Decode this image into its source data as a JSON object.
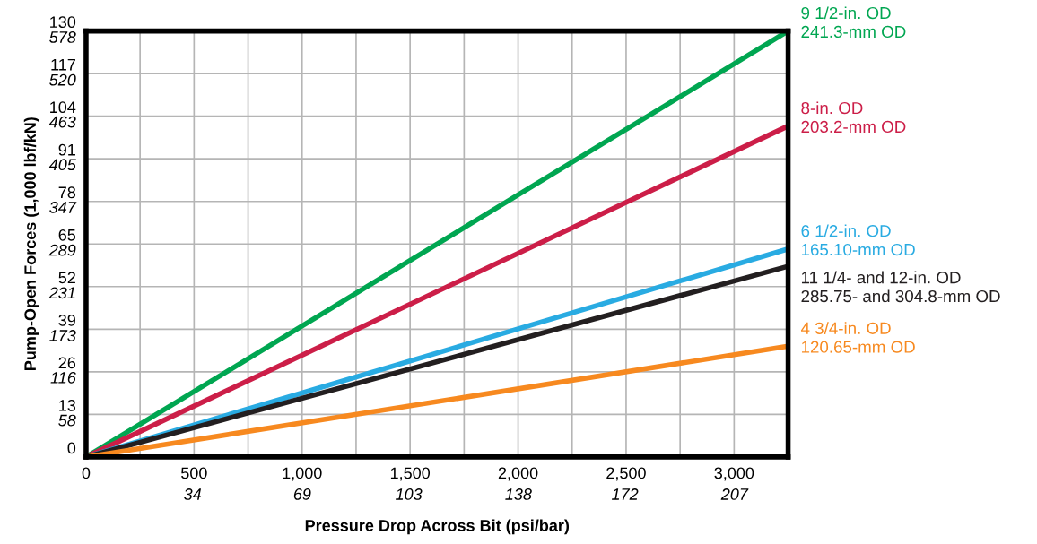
{
  "chart_data": {
    "type": "line",
    "xlabel": "Pressure Drop Across Bit (psi/bar)",
    "y2label": "Pump-Open Forces (1,000 lbf/kN)",
    "x": [
      0,
      3250
    ],
    "series": [
      {
        "name": "9 1/2-in. OD\n241.3-mm OD",
        "color": "#00a651",
        "values": [
          0,
          130
        ]
      },
      {
        "name": "8-in. OD\n203.2-mm OD",
        "color": "#cc1e48",
        "values": [
          0,
          101
        ]
      },
      {
        "name": "6 1/2-in. OD\n165.10-mm OD",
        "color": "#29abe2",
        "values": [
          0,
          63.5
        ]
      },
      {
        "name": "11 1/4- and 12-in. OD\n285.75- and 304.8-mm OD",
        "color": "#231f20",
        "values": [
          0,
          58.2
        ]
      },
      {
        "name": "4 3/4-in. OD\n120.65-mm OD",
        "color": "#f7891f",
        "values": [
          0,
          33.8
        ]
      }
    ],
    "xlim": [
      0,
      3250
    ],
    "xticks": [
      0,
      {
        "value": 250,
        "label": null
      },
      {
        "value": 500,
        "label": "500"
      },
      {
        "value": 750,
        "label": null
      },
      {
        "value": 1000,
        "label": "1,000"
      },
      {
        "value": 1250,
        "label": null
      },
      {
        "value": 1500,
        "label": "1,500"
      },
      {
        "value": 1750,
        "label": null
      },
      {
        "value": 2000,
        "label": "2,000"
      },
      {
        "value": 2250,
        "label": null
      },
      {
        "value": 2500,
        "label": "2,500"
      },
      {
        "value": 2750,
        "label": null
      },
      {
        "value": 3000,
        "label": "3,000"
      }
    ],
    "x2lim": [
      0,
      224.1
    ],
    "x2ticks": [
      34,
      69,
      103,
      138,
      172,
      207
    ],
    "ylim": [
      0,
      130
    ],
    "yticks": [
      0,
      13,
      26,
      39,
      52,
      65,
      78,
      91,
      104,
      117,
      130
    ],
    "y2lim": [
      0,
      578
    ],
    "y2ticks": [
      58,
      116,
      173,
      231,
      289,
      347,
      405,
      463,
      520,
      578
    ],
    "grid": true,
    "legend": false,
    "marker": "none",
    "line_style": "solid"
  }
}
